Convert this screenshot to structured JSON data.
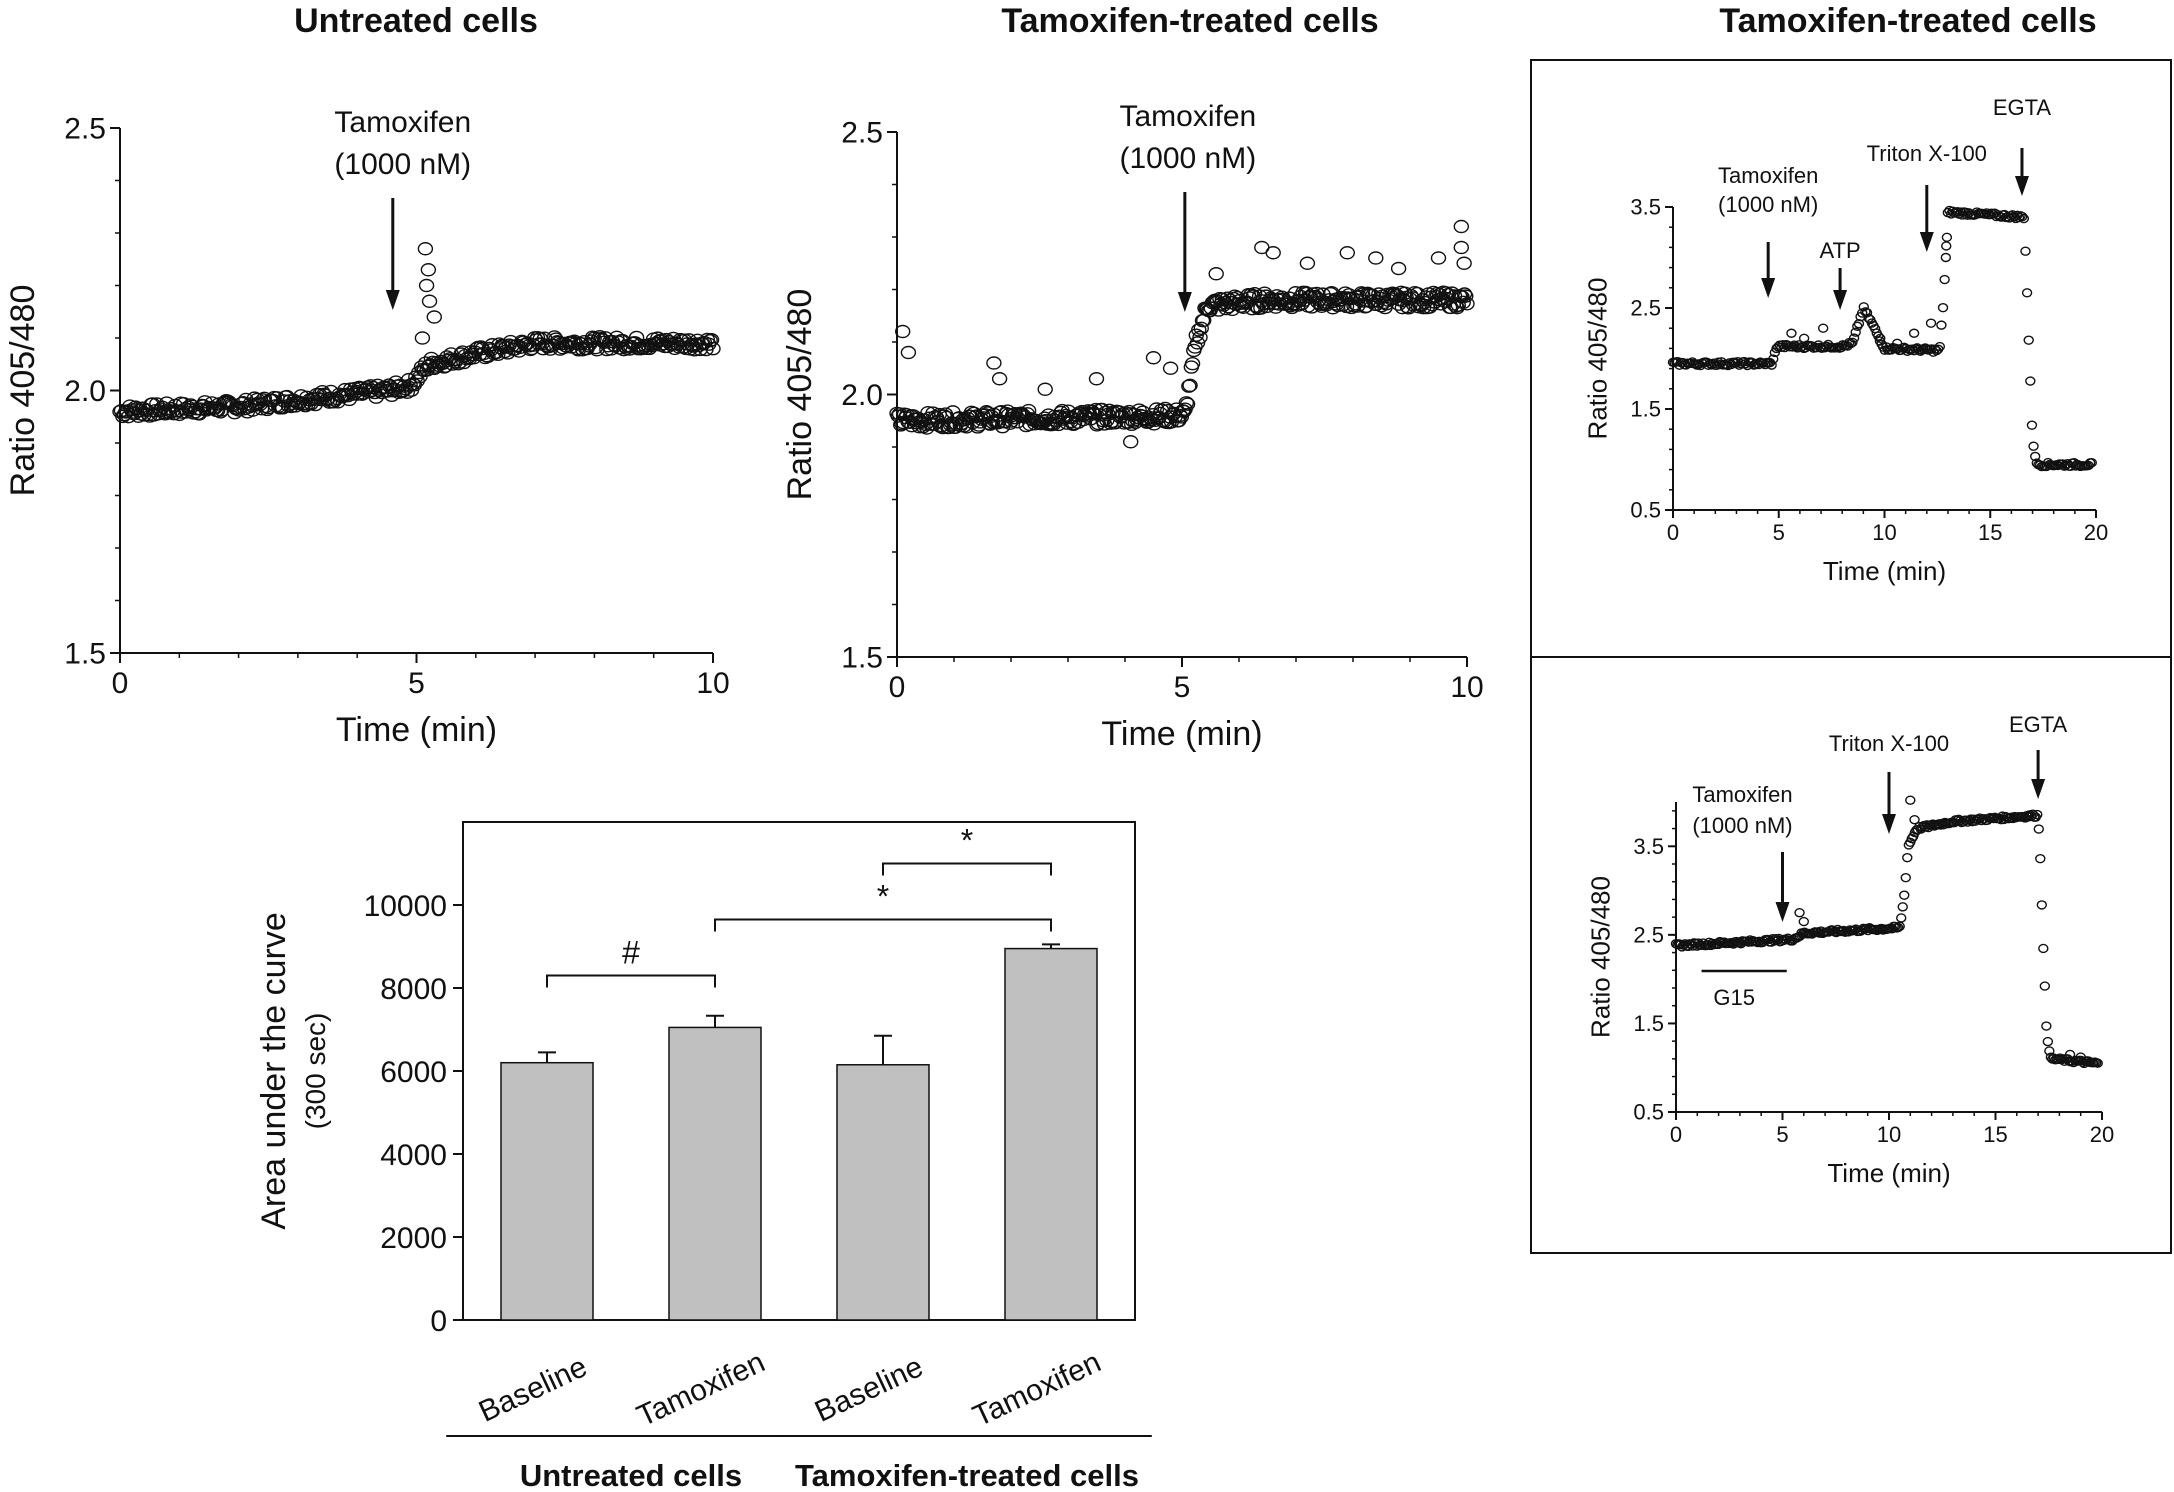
{
  "panel_titles": {
    "untreated": "Untreated cells",
    "treated": "Tamoxifen-treated cells",
    "right": "Tamoxifen-treated cells"
  },
  "chart_data": [
    {
      "id": "panelA",
      "type": "scatter",
      "title": "Untreated cells",
      "xlabel": "Time  (min)",
      "ylabel": "Ratio  405/480",
      "xlim": [
        0,
        10
      ],
      "ylim": [
        1.5,
        2.5
      ],
      "xticks": [
        "0",
        "5",
        "10"
      ],
      "yticks": [
        "1.5",
        "2.0",
        "2.5"
      ],
      "annotation": {
        "line1": "Tamoxifen",
        "line2": "(1000 nM)",
        "x": 4.6
      },
      "trend": [
        [
          0,
          1.96
        ],
        [
          2,
          1.97
        ],
        [
          4.5,
          2.0
        ],
        [
          4.9,
          2.01
        ],
        [
          5.2,
          2.05
        ],
        [
          6,
          2.07
        ],
        [
          7,
          2.09
        ],
        [
          10,
          2.09
        ]
      ],
      "outliers": [
        [
          5.15,
          2.27
        ],
        [
          5.2,
          2.23
        ],
        [
          5.17,
          2.2
        ],
        [
          5.22,
          2.17
        ],
        [
          5.3,
          2.14
        ],
        [
          5.1,
          2.1
        ]
      ]
    },
    {
      "id": "panelB",
      "type": "scatter",
      "title": "Tamoxifen-treated cells",
      "xlabel": "Time  (min)",
      "ylabel": "Ratio  405/480",
      "xlim": [
        0,
        10
      ],
      "ylim": [
        1.5,
        2.5
      ],
      "xticks": [
        "0",
        "5",
        "10"
      ],
      "yticks": [
        "1.5",
        "2.0",
        "2.5"
      ],
      "annotation": {
        "line1": "Tamoxifen",
        "line2": "(1000 nM)",
        "x": 5.05
      },
      "trend": [
        [
          0,
          1.95
        ],
        [
          5.05,
          1.96
        ],
        [
          5.25,
          2.1
        ],
        [
          5.45,
          2.17
        ],
        [
          6.5,
          2.18
        ],
        [
          10,
          2.18
        ]
      ],
      "outliers": [
        [
          0.1,
          2.12
        ],
        [
          0.2,
          2.08
        ],
        [
          1.7,
          2.06
        ],
        [
          1.8,
          2.03
        ],
        [
          3.5,
          2.03
        ],
        [
          4.5,
          2.07
        ],
        [
          4.8,
          2.05
        ],
        [
          5.6,
          2.23
        ],
        [
          6.4,
          2.28
        ],
        [
          6.6,
          2.27
        ],
        [
          7.2,
          2.25
        ],
        [
          7.9,
          2.27
        ],
        [
          8.4,
          2.26
        ],
        [
          8.8,
          2.24
        ],
        [
          9.5,
          2.26
        ],
        [
          9.9,
          2.32
        ],
        [
          9.9,
          2.28
        ],
        [
          9.95,
          2.25
        ],
        [
          4.1,
          1.91
        ],
        [
          2.6,
          2.01
        ]
      ]
    },
    {
      "id": "panelC",
      "type": "scatter",
      "title": "",
      "xlabel": "Time  (min)",
      "ylabel": "Ratio  405/480",
      "xlim": [
        0,
        20
      ],
      "ylim": [
        0.5,
        3.5
      ],
      "xticks": [
        "0",
        "5",
        "10",
        "15",
        "20"
      ],
      "yticks": [
        "0.5",
        "1.5",
        "2.5",
        "3.5"
      ],
      "annotations": [
        {
          "line1": "Tamoxifen",
          "line2": "(1000 nM)",
          "x": 4.5
        },
        {
          "line1": "ATP",
          "line2": "",
          "x": 7.9
        },
        {
          "line1": "Triton X-100",
          "line2": "",
          "x": 12.0
        },
        {
          "line1": "EGTA",
          "line2": "",
          "x": 16.5
        }
      ],
      "trend": [
        [
          0,
          1.95
        ],
        [
          4.7,
          1.95
        ],
        [
          4.9,
          2.12
        ],
        [
          8.0,
          2.12
        ],
        [
          8.5,
          2.15
        ],
        [
          9.0,
          2.5
        ],
        [
          9.4,
          2.35
        ],
        [
          10.0,
          2.1
        ],
        [
          12.6,
          2.08
        ],
        [
          12.8,
          2.6
        ],
        [
          13.0,
          3.45
        ],
        [
          16.6,
          3.4
        ],
        [
          16.7,
          2.9
        ],
        [
          16.85,
          2.0
        ],
        [
          17.0,
          1.2
        ],
        [
          17.2,
          0.95
        ],
        [
          19.8,
          0.95
        ]
      ],
      "outliers": [
        [
          5.6,
          2.25
        ],
        [
          6.2,
          2.2
        ],
        [
          7.1,
          2.3
        ],
        [
          9.8,
          2.2
        ],
        [
          10.6,
          2.15
        ],
        [
          11.4,
          2.25
        ],
        [
          12.2,
          2.35
        ],
        [
          12.9,
          3.0
        ],
        [
          12.95,
          3.2
        ]
      ]
    },
    {
      "id": "panelD",
      "type": "scatter",
      "title": "",
      "xlabel": "Time  (min)",
      "ylabel": "Ratio  405/480",
      "xlim": [
        0,
        20
      ],
      "ylim": [
        0.5,
        4.0
      ],
      "xticks": [
        "0",
        "5",
        "10",
        "15",
        "20"
      ],
      "yticks": [
        "0.5",
        "1.5",
        "2.5",
        "3.5"
      ],
      "annotations": [
        {
          "line1": "Tamoxifen",
          "line2": "(1000 nM)",
          "x": 5.0
        },
        {
          "line1": "Triton X-100",
          "line2": "",
          "x": 10.0
        },
        {
          "line1": "EGTA",
          "line2": "",
          "x": 17.0
        }
      ],
      "bar_label": {
        "text": "G15",
        "x0": 1.2,
        "x1": 5.2
      },
      "trend": [
        [
          0,
          2.38
        ],
        [
          5.5,
          2.45
        ],
        [
          6.0,
          2.52
        ],
        [
          10.5,
          2.58
        ],
        [
          10.7,
          2.9
        ],
        [
          10.9,
          3.5
        ],
        [
          11.3,
          3.7
        ],
        [
          13,
          3.78
        ],
        [
          17,
          3.85
        ],
        [
          17.1,
          3.4
        ],
        [
          17.25,
          2.3
        ],
        [
          17.4,
          1.4
        ],
        [
          17.6,
          1.1
        ],
        [
          19.8,
          1.05
        ]
      ],
      "outliers": [
        [
          5.8,
          2.75
        ],
        [
          6.0,
          2.65
        ],
        [
          11.0,
          4.02
        ],
        [
          11.2,
          3.8
        ],
        [
          18.5,
          1.15
        ],
        [
          19.0,
          1.12
        ]
      ]
    },
    {
      "id": "panelE",
      "type": "bar",
      "ylabel_line1": "Area under the curve",
      "ylabel_line2": "(300 sec)",
      "ylim": [
        0,
        12000
      ],
      "yticks": [
        "0",
        "2000",
        "4000",
        "6000",
        "8000",
        "10000"
      ],
      "categories": [
        "Baseline",
        "Tamoxifen",
        "Baseline",
        "Tamoxifen"
      ],
      "values": [
        6200,
        7050,
        6150,
        8950
      ],
      "errors": [
        250,
        280,
        700,
        100
      ],
      "groups": [
        {
          "label": "Untreated cells",
          "from": 0,
          "to": 1
        },
        {
          "label": "Tamoxifen-treated cells",
          "from": 2,
          "to": 3
        }
      ],
      "significance": [
        {
          "symbol": "#",
          "from": 0,
          "to": 1,
          "level": 8300
        },
        {
          "symbol": "*",
          "from": 1,
          "to": 3,
          "level": 9650
        },
        {
          "symbol": "*",
          "from": 2,
          "to": 3,
          "level": 11000
        }
      ],
      "bar_color": "#c0c0c0"
    }
  ]
}
